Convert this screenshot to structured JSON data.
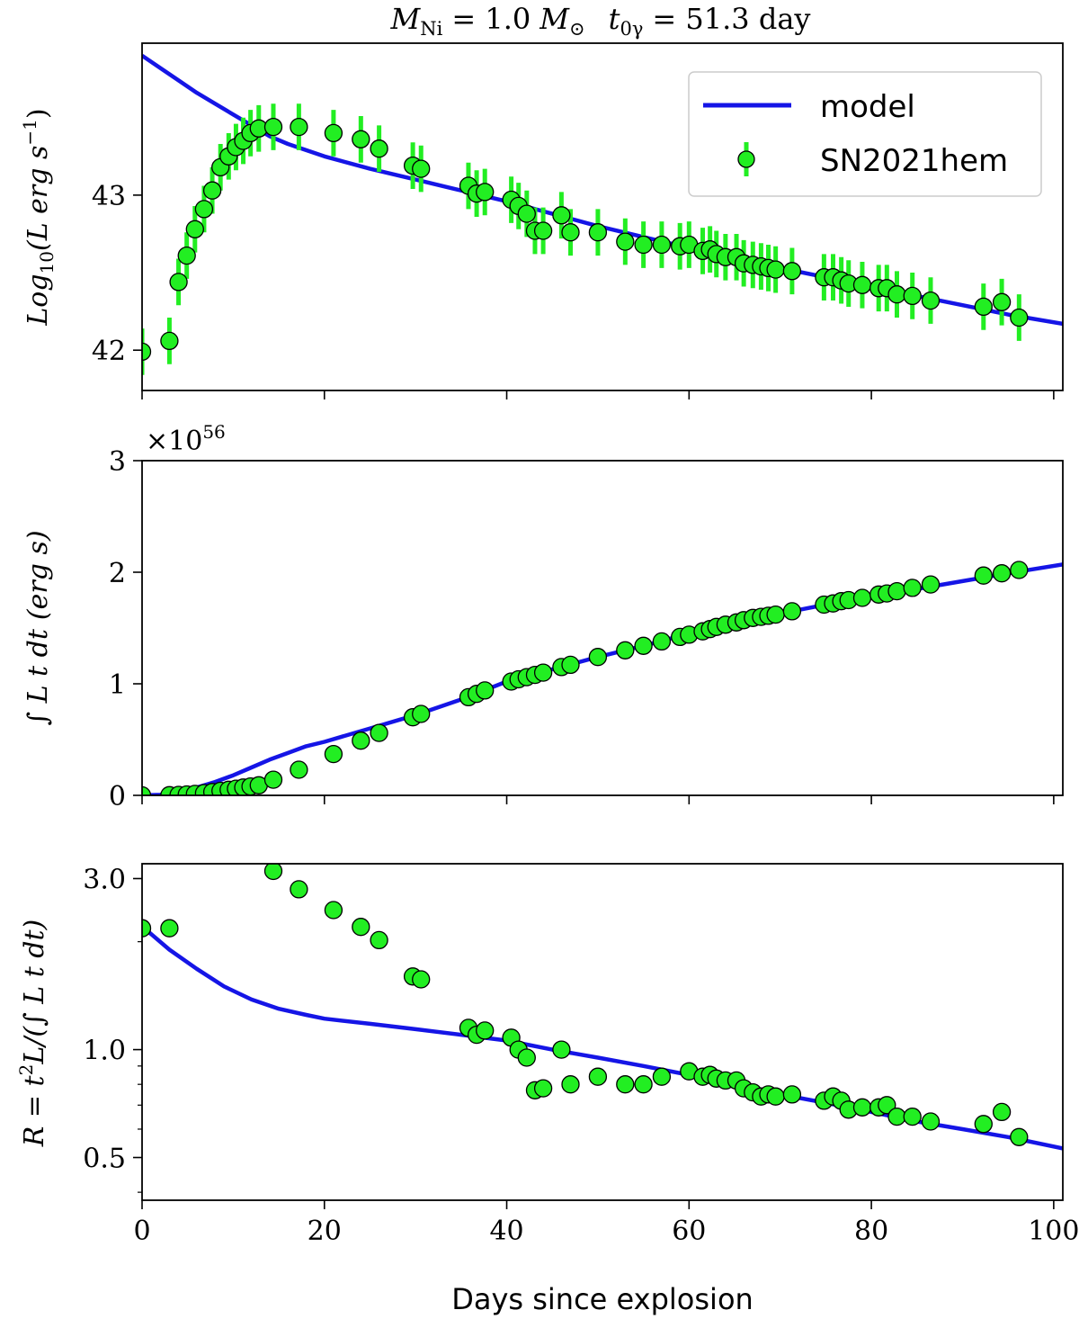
{
  "figure": {
    "title": "M_Ni = 1.0 M_⊙  t_0γ = 51.3 day",
    "title_parts": {
      "m_sym": "M",
      "m_sub": "Ni",
      "eq1": "= 1.0",
      "msun": "M",
      "msun_sub": "⊙",
      "t_sym": "t",
      "t_sub": "0γ",
      "eq2": "= 51.3 day"
    },
    "xlabel": "Days since explosion",
    "colors": {
      "model": "#1515e6",
      "points": "#22ee22",
      "errorbar": "#22ee22",
      "edge": "#000000"
    }
  },
  "chart_data": [
    {
      "type": "scatter",
      "panel": "top",
      "ylabel": "Log10(L erg s^-1)",
      "ylabel_parts": {
        "a": "Log",
        "sub": "10",
        "b": "(L erg s",
        "sup": "−1",
        "c": ")"
      },
      "xlim": [
        0,
        101
      ],
      "ylim": [
        41.74,
        43.98
      ],
      "yscale": "linear",
      "xticks": [
        0,
        20,
        40,
        60,
        80,
        100
      ],
      "yticks": [
        42,
        43
      ],
      "ytick_labels": [
        "42",
        "43"
      ],
      "legend": {
        "location": "top-right",
        "model": "model",
        "data": "SN2021hem"
      },
      "series": [
        {
          "name": "model",
          "kind": "line",
          "x": [
            0,
            2,
            4,
            6,
            8,
            10,
            12,
            14,
            16,
            18,
            20,
            25,
            30,
            35,
            40,
            45,
            50,
            55,
            60,
            65,
            70,
            75,
            80,
            85,
            90,
            95,
            101
          ],
          "y": [
            43.9,
            43.82,
            43.74,
            43.66,
            43.59,
            43.52,
            43.45,
            43.38,
            43.33,
            43.29,
            43.25,
            43.17,
            43.1,
            43.03,
            42.96,
            42.88,
            42.8,
            42.73,
            42.66,
            42.6,
            42.53,
            42.47,
            42.41,
            42.35,
            42.29,
            42.23,
            42.17
          ]
        },
        {
          "name": "SN2021hem",
          "kind": "errorbar",
          "x": [
            0,
            3,
            4,
            4.9,
            5.8,
            6.8,
            7.7,
            8.6,
            9.5,
            10.3,
            11.1,
            11.9,
            12.8,
            14.4,
            17.2,
            21,
            24,
            26,
            29.7,
            30.6,
            35.8,
            36.7,
            37.6,
            40.5,
            41.3,
            42.2,
            43.1,
            44,
            46,
            47,
            50,
            53,
            55,
            57,
            59,
            60,
            61.5,
            62.3,
            63,
            64,
            65.2,
            66,
            67,
            67.9,
            68.7,
            69.5,
            71.3,
            74.8,
            75.8,
            76.7,
            77.5,
            79,
            80.8,
            81.7,
            82.8,
            84.5,
            86.5,
            92.3,
            94.3,
            96.2
          ],
          "y": [
            41.99,
            42.06,
            42.44,
            42.61,
            42.78,
            42.91,
            43.03,
            43.18,
            43.25,
            43.31,
            43.35,
            43.4,
            43.43,
            43.44,
            43.44,
            43.4,
            43.36,
            43.3,
            43.19,
            43.17,
            43.06,
            43.01,
            43.02,
            42.97,
            42.93,
            42.88,
            42.77,
            42.77,
            42.87,
            42.76,
            42.76,
            42.7,
            42.68,
            42.68,
            42.67,
            42.68,
            42.64,
            42.65,
            42.62,
            42.6,
            42.6,
            42.56,
            42.55,
            42.54,
            42.53,
            42.52,
            42.51,
            42.47,
            42.47,
            42.45,
            42.43,
            42.42,
            42.4,
            42.4,
            42.36,
            42.35,
            42.32,
            42.28,
            42.31,
            42.21
          ],
          "yerr": 0.15
        }
      ]
    },
    {
      "type": "scatter",
      "panel": "middle",
      "ylabel": "∫ L t dt (erg s)",
      "ylabel_parts": {
        "a": "∫ L t dt",
        "b": "(erg s)"
      },
      "offset_text": "×10^56",
      "offset_parts": {
        "base": "×10",
        "exp": "56"
      },
      "xlim": [
        0,
        101
      ],
      "ylim": [
        0,
        3
      ],
      "yscale": "linear",
      "xticks": [
        0,
        20,
        40,
        60,
        80,
        100
      ],
      "yticks": [
        0,
        1,
        2,
        3
      ],
      "ytick_labels": [
        "0",
        "1",
        "2",
        "3"
      ],
      "series": [
        {
          "name": "model",
          "kind": "line",
          "x": [
            0,
            2,
            4,
            6,
            8,
            10,
            12,
            14,
            16,
            18,
            20,
            25,
            30,
            35,
            40,
            45,
            50,
            55,
            60,
            65,
            70,
            75,
            80,
            85,
            90,
            95,
            101
          ],
          "y": [
            0,
            0.005,
            0.03,
            0.07,
            0.12,
            0.18,
            0.25,
            0.32,
            0.38,
            0.44,
            0.48,
            0.6,
            0.72,
            0.86,
            1.02,
            1.13,
            1.24,
            1.34,
            1.45,
            1.54,
            1.63,
            1.71,
            1.78,
            1.85,
            1.92,
            1.99,
            2.07
          ]
        },
        {
          "name": "SN2021hem",
          "kind": "points",
          "x": [
            0,
            3,
            4,
            4.9,
            5.8,
            6.8,
            7.7,
            8.6,
            9.5,
            10.3,
            11.1,
            11.9,
            12.8,
            14.4,
            17.2,
            21,
            24,
            26,
            29.7,
            30.6,
            35.8,
            36.7,
            37.6,
            40.5,
            41.3,
            42.2,
            43.1,
            44,
            46,
            47,
            50,
            53,
            55,
            57,
            59,
            60,
            61.5,
            62.3,
            63,
            64,
            65.2,
            66,
            67,
            67.9,
            68.7,
            69.5,
            71.3,
            74.8,
            75.8,
            76.7,
            77.5,
            79,
            80.8,
            81.7,
            82.8,
            84.5,
            86.5,
            92.3,
            94.3,
            96.2
          ],
          "y": [
            0,
            0.002,
            0.004,
            0.008,
            0.013,
            0.02,
            0.03,
            0.04,
            0.05,
            0.06,
            0.07,
            0.08,
            0.09,
            0.14,
            0.23,
            0.37,
            0.49,
            0.56,
            0.7,
            0.73,
            0.88,
            0.91,
            0.94,
            1.02,
            1.04,
            1.06,
            1.08,
            1.1,
            1.15,
            1.17,
            1.24,
            1.3,
            1.34,
            1.38,
            1.42,
            1.44,
            1.47,
            1.49,
            1.51,
            1.53,
            1.55,
            1.57,
            1.59,
            1.6,
            1.61,
            1.62,
            1.65,
            1.71,
            1.72,
            1.74,
            1.75,
            1.77,
            1.8,
            1.81,
            1.83,
            1.86,
            1.89,
            1.97,
            1.99,
            2.02
          ]
        }
      ]
    },
    {
      "type": "scatter",
      "panel": "bottom",
      "ylabel": "R = t²L/(∫ L t dt)",
      "ylabel_parts": {
        "a": "R = t",
        "sup": "2",
        "b": "L/(∫ L t dt)"
      },
      "xlim": [
        0,
        101
      ],
      "ylim": [
        0.38,
        3.3
      ],
      "yscale": "log",
      "xticks": [
        0,
        20,
        40,
        60,
        80,
        100
      ],
      "xtick_labels": [
        "0",
        "20",
        "40",
        "60",
        "80",
        "100"
      ],
      "yticks": [
        0.5,
        1.0,
        3.0
      ],
      "ytick_labels": [
        "0.5",
        "1.0",
        "3.0"
      ],
      "series": [
        {
          "name": "model",
          "kind": "line",
          "x": [
            0,
            1,
            3,
            6,
            9,
            12,
            15,
            18,
            20,
            25,
            30,
            35,
            40,
            45,
            50,
            55,
            60,
            65,
            70,
            75,
            80,
            85,
            90,
            95,
            101
          ],
          "y": [
            2.2,
            2.1,
            1.9,
            1.68,
            1.5,
            1.38,
            1.3,
            1.25,
            1.22,
            1.18,
            1.14,
            1.1,
            1.06,
            1.0,
            0.95,
            0.9,
            0.85,
            0.8,
            0.75,
            0.71,
            0.67,
            0.63,
            0.6,
            0.57,
            0.53
          ]
        },
        {
          "name": "SN2021hem",
          "kind": "points",
          "x": [
            0,
            3,
            14.4,
            17.2,
            21,
            24,
            26,
            29.7,
            30.6,
            35.8,
            36.7,
            37.6,
            40.5,
            41.3,
            42.2,
            43.1,
            44,
            46,
            47,
            50,
            53,
            55,
            57,
            60,
            61.5,
            62.3,
            63,
            64,
            65.2,
            66,
            67,
            67.9,
            68.7,
            69.5,
            71.3,
            74.8,
            75.8,
            76.7,
            77.5,
            79,
            80.8,
            81.7,
            82.8,
            84.5,
            86.5,
            92.3,
            94.3,
            96.2
          ],
          "y": [
            2.18,
            2.18,
            3.15,
            2.8,
            2.45,
            2.2,
            2.02,
            1.6,
            1.57,
            1.15,
            1.1,
            1.13,
            1.08,
            1.0,
            0.95,
            0.77,
            0.78,
            1.0,
            0.8,
            0.84,
            0.8,
            0.8,
            0.84,
            0.87,
            0.84,
            0.85,
            0.83,
            0.82,
            0.82,
            0.78,
            0.76,
            0.74,
            0.75,
            0.74,
            0.75,
            0.72,
            0.74,
            0.72,
            0.68,
            0.69,
            0.69,
            0.7,
            0.65,
            0.65,
            0.63,
            0.62,
            0.67,
            0.57
          ]
        }
      ]
    }
  ]
}
